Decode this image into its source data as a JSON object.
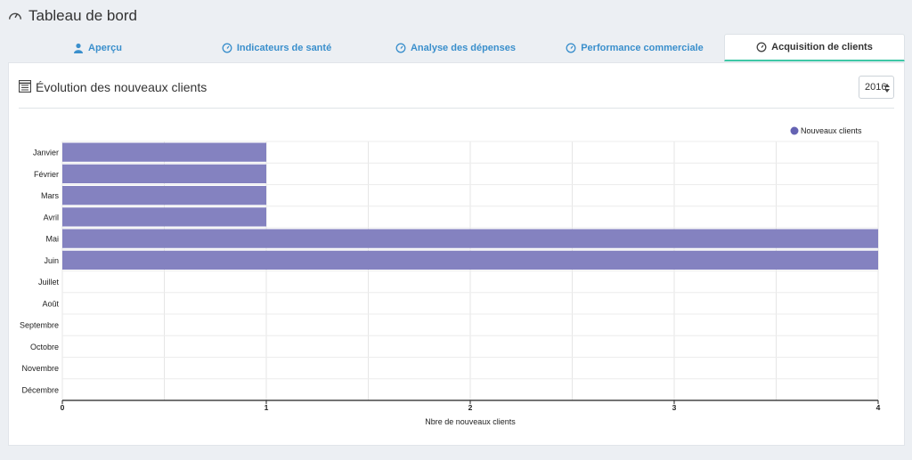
{
  "header": {
    "title": "Tableau de bord"
  },
  "tabs": [
    {
      "label": "Aperçu",
      "icon": "user-icon",
      "active": false
    },
    {
      "label": "Indicateurs de santé",
      "icon": "gauge-icon",
      "active": false
    },
    {
      "label": "Analyse des dépenses",
      "icon": "gauge-icon",
      "active": false
    },
    {
      "label": "Performance commerciale",
      "icon": "gauge-icon",
      "active": false
    },
    {
      "label": "Acquisition de clients",
      "icon": "gauge-icon",
      "active": true
    }
  ],
  "panel": {
    "title": "Évolution des nouveaux clients",
    "year_value": "2016"
  },
  "colors": {
    "accent": "#3a8fcc",
    "active_underline": "#3ec7a6",
    "bar": "#8482c0",
    "legend_dot": "#6563b3"
  },
  "chart_data": {
    "type": "bar",
    "orientation": "horizontal",
    "categories": [
      "Janvier",
      "Février",
      "Mars",
      "Avril",
      "Mai",
      "Juin",
      "Juillet",
      "Août",
      "Septembre",
      "Octobre",
      "Novembre",
      "Décembre"
    ],
    "series": [
      {
        "name": "Nouveaux clients",
        "values": [
          1,
          1,
          1,
          1,
          4,
          4,
          0,
          0,
          0,
          0,
          0,
          0
        ]
      }
    ],
    "xlabel": "Nbre de nouveaux clients",
    "xlim": [
      0,
      4
    ],
    "xticks": [
      "0",
      "1",
      "2",
      "3",
      "4"
    ],
    "grid": true,
    "legend_position": "top-right"
  }
}
